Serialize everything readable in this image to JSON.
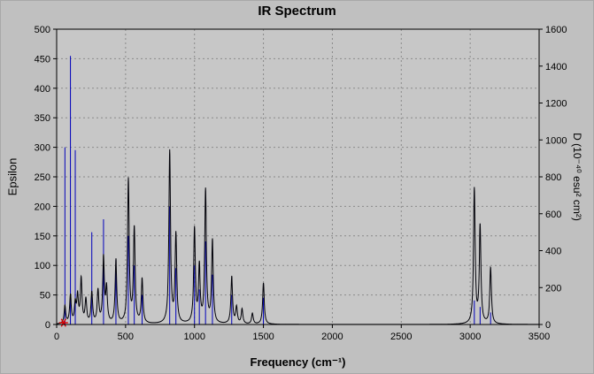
{
  "chart_data": {
    "type": "line",
    "title": "IR Spectrum",
    "xlabel": "Frequency (cm⁻¹)",
    "ylabel_left": "Epsilon",
    "ylabel_right": "D (10⁻⁴⁰ esu² cm²)",
    "xlim": [
      0,
      3500
    ],
    "ylim_left": [
      0,
      500
    ],
    "ylim_right": [
      0,
      1600
    ],
    "x_ticks": [
      0,
      500,
      1000,
      1500,
      2000,
      2500,
      3000,
      3500
    ],
    "y_ticks_left": [
      0,
      50,
      100,
      150,
      200,
      250,
      300,
      350,
      400,
      450,
      500
    ],
    "y_ticks_right": [
      0,
      200,
      400,
      600,
      800,
      1000,
      1200,
      1400,
      1600
    ],
    "grid": "dashed",
    "legend": "none",
    "lorentzian_hwhm": 7,
    "colors": {
      "window_bg": "#c0c0c0",
      "plot_bg": "#c7c7c7",
      "grid": "#8a8a8a",
      "frame": "#000000",
      "curve": "#000008",
      "stick": "#0000bb",
      "marker": "#dd0000",
      "text": "#000000"
    },
    "marker": {
      "x": 50,
      "y": 0
    },
    "peaks_epsilon": [
      [
        60,
        30
      ],
      [
        100,
        48
      ],
      [
        135,
        32
      ],
      [
        152,
        45
      ],
      [
        178,
        75
      ],
      [
        212,
        40
      ],
      [
        255,
        52
      ],
      [
        300,
        55
      ],
      [
        340,
        110
      ],
      [
        362,
        58
      ],
      [
        430,
        108
      ],
      [
        520,
        243
      ],
      [
        563,
        160
      ],
      [
        620,
        75
      ],
      [
        820,
        292
      ],
      [
        865,
        150
      ],
      [
        1000,
        160
      ],
      [
        1035,
        95
      ],
      [
        1080,
        225
      ],
      [
        1130,
        140
      ],
      [
        1270,
        80
      ],
      [
        1305,
        28
      ],
      [
        1345,
        25
      ],
      [
        1420,
        18
      ],
      [
        1500,
        70
      ],
      [
        3030,
        228
      ],
      [
        3072,
        165
      ],
      [
        3148,
        95
      ]
    ],
    "sticks_D": [
      [
        60,
        960
      ],
      [
        100,
        1455
      ],
      [
        135,
        945
      ],
      [
        255,
        500
      ],
      [
        340,
        570
      ],
      [
        430,
        350
      ],
      [
        520,
        480
      ],
      [
        563,
        320
      ],
      [
        620,
        160
      ],
      [
        820,
        640
      ],
      [
        865,
        305
      ],
      [
        1000,
        320
      ],
      [
        1035,
        190
      ],
      [
        1080,
        450
      ],
      [
        1130,
        270
      ],
      [
        1270,
        160
      ],
      [
        1500,
        145
      ],
      [
        3030,
        130
      ],
      [
        3072,
        95
      ],
      [
        3148,
        65
      ]
    ]
  }
}
